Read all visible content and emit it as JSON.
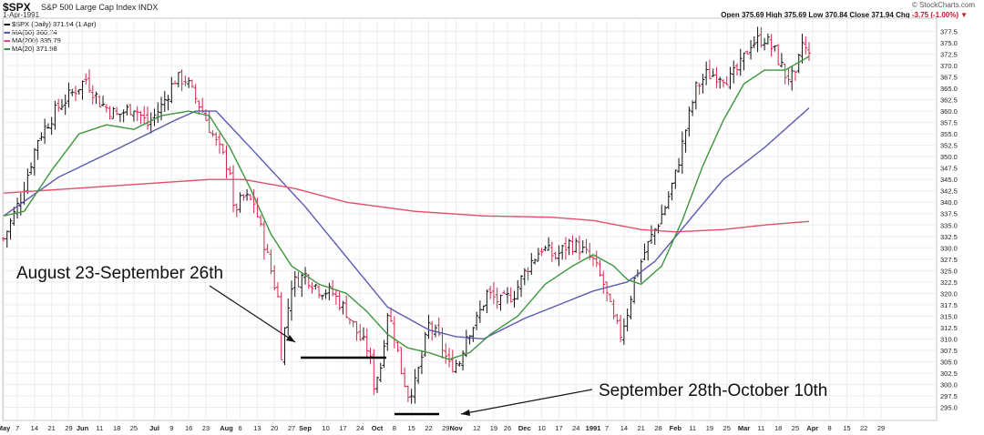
{
  "header": {
    "ticker": "$SPX",
    "ticker_desc": "S&P 500 Large Cap Index  INDX",
    "date": "1-Apr-1991",
    "copyright": "© StockCharts.com",
    "ohlc": {
      "open_label": "Open",
      "open": "375.69",
      "high_label": "High",
      "high": "375.69",
      "low_label": "Low",
      "low": "370.84",
      "close_label": "Close",
      "close": "371.94",
      "chg_label": "Chg",
      "chg": "-3.75 (-1.00%)"
    }
  },
  "legend": [
    {
      "label": "$SPX (Daily) 371.94 (1 Apr)",
      "color": "#111111"
    },
    {
      "label": "MA(50) 360.74",
      "color": "#5a5ab4"
    },
    {
      "label": "MA(200) 335.79",
      "color": "#e0506e"
    },
    {
      "label": "MA(20) 371.98",
      "color": "#3c963c"
    }
  ],
  "annotations": {
    "left": "August 23-September 26th",
    "right": "September 28th-October 10th"
  },
  "chart_data": {
    "type": "line",
    "title": "$SPX S&P 500 Large Cap Index",
    "ylim": [
      292.5,
      380
    ],
    "y_ticks": [
      295.0,
      297.5,
      300.0,
      302.5,
      305.0,
      307.5,
      310.0,
      312.5,
      315.0,
      317.5,
      320.0,
      322.5,
      325.0,
      327.5,
      330.0,
      332.5,
      335.0,
      337.5,
      340.0,
      342.5,
      345.0,
      347.5,
      350.0,
      352.5,
      355.0,
      357.5,
      360.0,
      362.5,
      365.0,
      367.5,
      370.0,
      372.5,
      375.0,
      377.5
    ],
    "x_labels": [
      {
        "t": 0,
        "label": "May"
      },
      {
        "t": 4,
        "label": "7"
      },
      {
        "t": 9,
        "label": "14"
      },
      {
        "t": 14,
        "label": "21"
      },
      {
        "t": 19,
        "label": "29"
      },
      {
        "t": 23,
        "label": "Jun"
      },
      {
        "t": 28,
        "label": "11"
      },
      {
        "t": 33,
        "label": "18"
      },
      {
        "t": 38,
        "label": "25"
      },
      {
        "t": 44,
        "label": "Jul"
      },
      {
        "t": 49,
        "label": "9"
      },
      {
        "t": 54,
        "label": "16"
      },
      {
        "t": 59,
        "label": "23"
      },
      {
        "t": 65,
        "label": "Aug"
      },
      {
        "t": 69,
        "label": "6"
      },
      {
        "t": 74,
        "label": "13"
      },
      {
        "t": 79,
        "label": "20"
      },
      {
        "t": 84,
        "label": "27"
      },
      {
        "t": 88,
        "label": "Sep"
      },
      {
        "t": 94,
        "label": "10"
      },
      {
        "t": 99,
        "label": "17"
      },
      {
        "t": 104,
        "label": "24"
      },
      {
        "t": 109,
        "label": "Oct"
      },
      {
        "t": 114,
        "label": "8"
      },
      {
        "t": 119,
        "label": "15"
      },
      {
        "t": 124,
        "label": "22"
      },
      {
        "t": 129,
        "label": "29"
      },
      {
        "t": 132,
        "label": "Nov"
      },
      {
        "t": 138,
        "label": "12"
      },
      {
        "t": 143,
        "label": "19"
      },
      {
        "t": 147,
        "label": "26"
      },
      {
        "t": 152,
        "label": "Dec"
      },
      {
        "t": 157,
        "label": "10"
      },
      {
        "t": 162,
        "label": "17"
      },
      {
        "t": 167,
        "label": "24"
      },
      {
        "t": 172,
        "label": "1991"
      },
      {
        "t": 176,
        "label": "7"
      },
      {
        "t": 181,
        "label": "14"
      },
      {
        "t": 186,
        "label": "21"
      },
      {
        "t": 191,
        "label": "28"
      },
      {
        "t": 196,
        "label": "Feb"
      },
      {
        "t": 201,
        "label": "11"
      },
      {
        "t": 206,
        "label": "19"
      },
      {
        "t": 211,
        "label": "25"
      },
      {
        "t": 216,
        "label": "Mar"
      },
      {
        "t": 221,
        "label": "11"
      },
      {
        "t": 226,
        "label": "18"
      },
      {
        "t": 231,
        "label": "25"
      },
      {
        "t": 236,
        "label": "Apr"
      },
      {
        "t": 241,
        "label": "8"
      },
      {
        "t": 246,
        "label": "15"
      },
      {
        "t": 251,
        "label": "22"
      },
      {
        "t": 256,
        "label": "29"
      }
    ],
    "price_anchors": [
      [
        0,
        332
      ],
      [
        5,
        341
      ],
      [
        10,
        354
      ],
      [
        16,
        361
      ],
      [
        20,
        364
      ],
      [
        24,
        367
      ],
      [
        28,
        362
      ],
      [
        33,
        359
      ],
      [
        38,
        361
      ],
      [
        42,
        357
      ],
      [
        46,
        361
      ],
      [
        50,
        367
      ],
      [
        53,
        367
      ],
      [
        58,
        360
      ],
      [
        62,
        353
      ],
      [
        66,
        347
      ],
      [
        67,
        338
      ],
      [
        70,
        341
      ],
      [
        73,
        340
      ],
      [
        76,
        331
      ],
      [
        80,
        319
      ],
      [
        81,
        307
      ],
      [
        84,
        322
      ],
      [
        88,
        324
      ],
      [
        92,
        321
      ],
      [
        96,
        320
      ],
      [
        100,
        316
      ],
      [
        104,
        310
      ],
      [
        106,
        308
      ],
      [
        107,
        305
      ],
      [
        108,
        300
      ],
      [
        110,
        304
      ],
      [
        112,
        316
      ],
      [
        114,
        311
      ],
      [
        116,
        303
      ],
      [
        118,
        298
      ],
      [
        120,
        300
      ],
      [
        122,
        306
      ],
      [
        124,
        313
      ],
      [
        127,
        310
      ],
      [
        130,
        304
      ],
      [
        133,
        305
      ],
      [
        135,
        311
      ],
      [
        138,
        314
      ],
      [
        141,
        320
      ],
      [
        145,
        318
      ],
      [
        149,
        320
      ],
      [
        153,
        326
      ],
      [
        157,
        330
      ],
      [
        161,
        328
      ],
      [
        165,
        331
      ],
      [
        168,
        330
      ],
      [
        172,
        327
      ],
      [
        175,
        322
      ],
      [
        178,
        314
      ],
      [
        180,
        311
      ],
      [
        182,
        316
      ],
      [
        184,
        323
      ],
      [
        187,
        329
      ],
      [
        190,
        334
      ],
      [
        193,
        339
      ],
      [
        196,
        346
      ],
      [
        199,
        356
      ],
      [
        202,
        365
      ],
      [
        205,
        368
      ],
      [
        209,
        368
      ],
      [
        212,
        367
      ],
      [
        215,
        370
      ],
      [
        218,
        375
      ],
      [
        222,
        376
      ],
      [
        225,
        373
      ],
      [
        228,
        368
      ],
      [
        231,
        367
      ],
      [
        233,
        375
      ],
      [
        235,
        372
      ]
    ],
    "series": [
      {
        "name": "MA(50)",
        "color": "#5a5ab4",
        "points": [
          [
            0,
            337
          ],
          [
            16,
            345.5
          ],
          [
            34,
            352
          ],
          [
            50,
            358
          ],
          [
            56,
            360
          ],
          [
            62,
            360
          ],
          [
            72,
            352
          ],
          [
            88,
            339
          ],
          [
            100,
            328
          ],
          [
            112,
            317
          ],
          [
            124,
            312
          ],
          [
            132,
            310.5
          ],
          [
            140,
            310
          ],
          [
            152,
            314.5
          ],
          [
            162,
            317.5
          ],
          [
            172,
            320.5
          ],
          [
            182,
            322.5
          ],
          [
            190,
            327
          ],
          [
            200,
            336
          ],
          [
            210,
            345
          ],
          [
            222,
            352
          ],
          [
            235,
            360.7
          ]
        ]
      },
      {
        "name": "MA(200)",
        "color": "#e0506e",
        "points": [
          [
            0,
            342
          ],
          [
            20,
            343
          ],
          [
            40,
            344
          ],
          [
            60,
            345
          ],
          [
            70,
            345
          ],
          [
            85,
            343
          ],
          [
            100,
            340
          ],
          [
            120,
            338
          ],
          [
            140,
            337
          ],
          [
            160,
            336.7
          ],
          [
            172,
            336
          ],
          [
            186,
            334
          ],
          [
            196,
            333.5
          ],
          [
            210,
            334
          ],
          [
            222,
            335
          ],
          [
            235,
            335.8
          ]
        ]
      },
      {
        "name": "MA(20)",
        "color": "#3c963c",
        "points": [
          [
            0,
            337
          ],
          [
            6,
            338
          ],
          [
            14,
            347
          ],
          [
            22,
            355
          ],
          [
            30,
            357
          ],
          [
            38,
            356
          ],
          [
            46,
            359
          ],
          [
            54,
            360
          ],
          [
            60,
            359
          ],
          [
            66,
            352
          ],
          [
            72,
            343
          ],
          [
            78,
            333
          ],
          [
            84,
            326
          ],
          [
            92,
            322
          ],
          [
            100,
            320
          ],
          [
            106,
            316
          ],
          [
            112,
            311
          ],
          [
            118,
            308
          ],
          [
            124,
            307
          ],
          [
            130,
            305.5
          ],
          [
            136,
            307
          ],
          [
            142,
            311
          ],
          [
            150,
            315
          ],
          [
            158,
            322
          ],
          [
            166,
            326
          ],
          [
            172,
            328.5
          ],
          [
            178,
            326
          ],
          [
            182,
            323
          ],
          [
            186,
            322
          ],
          [
            192,
            326
          ],
          [
            198,
            336
          ],
          [
            204,
            348
          ],
          [
            210,
            358
          ],
          [
            216,
            366
          ],
          [
            222,
            369
          ],
          [
            228,
            369
          ],
          [
            235,
            372
          ]
        ]
      }
    ]
  }
}
